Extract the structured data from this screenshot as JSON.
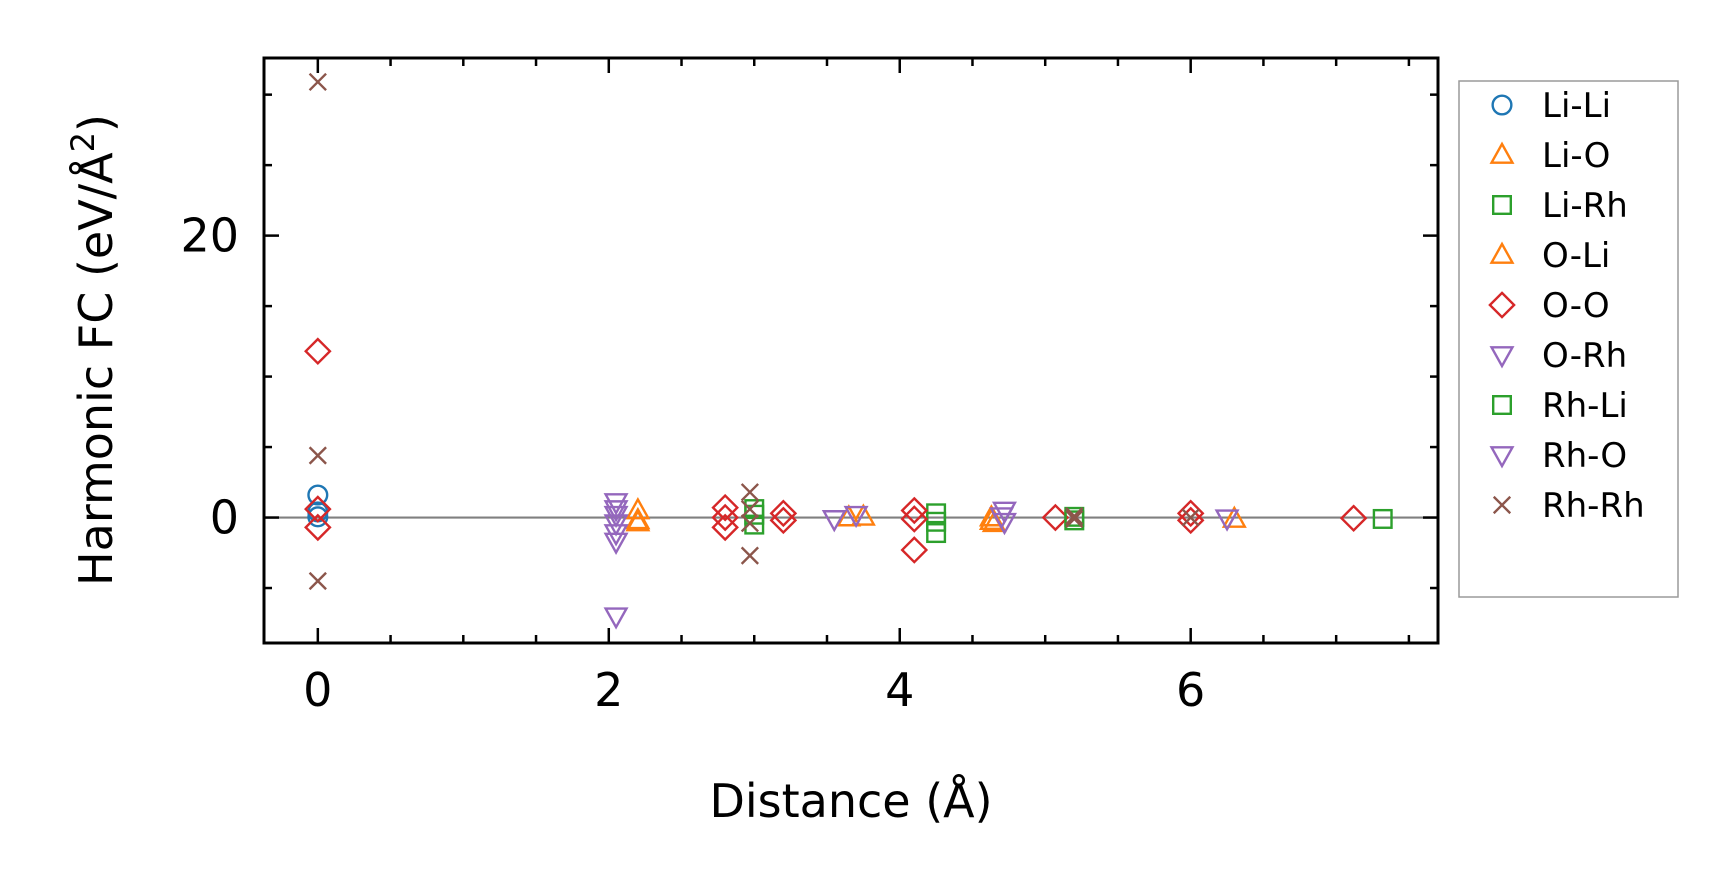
{
  "chart_data": {
    "type": "scatter",
    "title": "",
    "xlabel": "Distance (Å)",
    "ylabel_prefix": "Harmonic FC (eV/Å",
    "ylabel_sup": "2",
    "ylabel_suffix": ")",
    "xlim": [
      -0.37,
      7.7
    ],
    "ylim": [
      -8.9,
      32.6
    ],
    "x_ticks": [
      0,
      2,
      4,
      6
    ],
    "y_ticks": [
      0,
      20
    ],
    "x_minor_step": 0.5,
    "y_minor_step": 5,
    "zero_line": true,
    "grid": false,
    "legend_placement": "right, outside plot",
    "series": [
      {
        "name": "Li-Li",
        "marker": "circle",
        "color": "#1f77b4",
        "points": [
          [
            0,
            1.6
          ],
          [
            0,
            0.4
          ],
          [
            0,
            0.05
          ]
        ]
      },
      {
        "name": "Li-O",
        "marker": "triangle-up",
        "color": "#ff7f0e",
        "points": [
          [
            2.2,
            0.5
          ],
          [
            2.2,
            -0.2
          ],
          [
            3.65,
            0.0
          ],
          [
            3.75,
            0.05
          ],
          [
            4.63,
            0.0
          ],
          [
            4.63,
            -0.25
          ],
          [
            6.3,
            -0.1
          ]
        ]
      },
      {
        "name": "Li-Rh",
        "marker": "square",
        "color": "#2ca02c",
        "points": [
          [
            3.0,
            0.6
          ],
          [
            3.0,
            0.2
          ],
          [
            3.0,
            -0.5
          ],
          [
            4.25,
            0.3
          ],
          [
            4.25,
            -0.3
          ],
          [
            4.25,
            -1.1
          ],
          [
            5.2,
            0.05
          ],
          [
            7.32,
            -0.1
          ]
        ]
      },
      {
        "name": "O-Li",
        "marker": "triangle-up",
        "color": "#ff7f0e",
        "points": [
          [
            2.2,
            -0.35
          ],
          [
            4.65,
            -0.4
          ]
        ]
      },
      {
        "name": "O-O",
        "marker": "diamond",
        "color": "#d62728",
        "points": [
          [
            0,
            11.8
          ],
          [
            0,
            0.6
          ],
          [
            0,
            -0.7
          ],
          [
            2.8,
            0.7
          ],
          [
            2.8,
            0.0
          ],
          [
            2.8,
            -0.7
          ],
          [
            3.2,
            0.3
          ],
          [
            3.2,
            -0.2
          ],
          [
            4.1,
            0.5
          ],
          [
            4.1,
            -0.1
          ],
          [
            4.1,
            -2.3
          ],
          [
            5.07,
            0.0
          ],
          [
            6.0,
            0.3
          ],
          [
            6.0,
            -0.2
          ],
          [
            7.12,
            -0.05
          ]
        ]
      },
      {
        "name": "O-Rh",
        "marker": "triangle-down",
        "color": "#9467bd",
        "points": [
          [
            2.05,
            1.1
          ],
          [
            2.05,
            0.6
          ],
          [
            2.05,
            0.2
          ],
          [
            2.05,
            -0.4
          ],
          [
            2.05,
            -1.1
          ],
          [
            2.05,
            -7.0
          ],
          [
            3.55,
            -0.1
          ],
          [
            3.7,
            0.2
          ],
          [
            4.72,
            0.5
          ],
          [
            4.72,
            -0.3
          ],
          [
            6.25,
            -0.05
          ]
        ]
      },
      {
        "name": "Rh-Li",
        "marker": "square",
        "color": "#2ca02c",
        "points": [
          [
            5.2,
            -0.2
          ]
        ]
      },
      {
        "name": "Rh-O",
        "marker": "triangle-down",
        "color": "#9467bd",
        "points": [
          [
            2.05,
            -1.7
          ],
          [
            4.7,
            0.1
          ]
        ]
      },
      {
        "name": "Rh-Rh",
        "marker": "x",
        "color": "#8c564b",
        "points": [
          [
            0,
            30.9
          ],
          [
            0,
            4.4
          ],
          [
            0,
            -4.5
          ],
          [
            2.97,
            1.8
          ],
          [
            2.97,
            0.6
          ],
          [
            2.97,
            -0.4
          ],
          [
            2.97,
            -2.7
          ],
          [
            5.2,
            0.1
          ],
          [
            5.2,
            -0.1
          ],
          [
            6.0,
            0.0
          ]
        ]
      }
    ]
  }
}
